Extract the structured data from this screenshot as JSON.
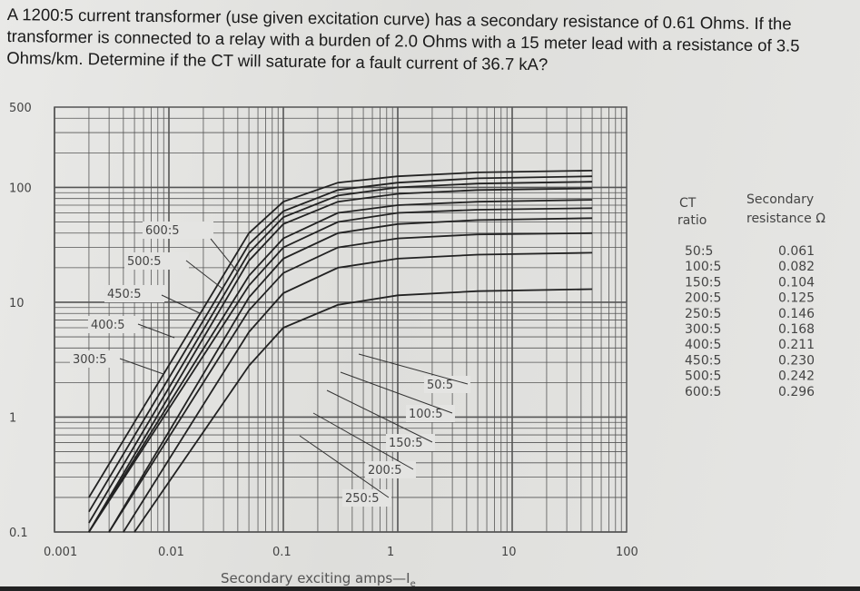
{
  "question": "A 1200:5 current transformer (use given excitation curve) has a secondary resistance of 0.61 Ohms. If the transformer is connected to a relay with a burden of 2.0 Ohms with a 15 meter lead with a resistance of 3.5 Ohms/km. Determine if the CT will saturate for a fault current of 36.7 kA?",
  "chart_data": {
    "type": "line",
    "x_scale": "log",
    "y_scale": "log",
    "xlim": [
      0.001,
      100
    ],
    "ylim": [
      0.1,
      500
    ],
    "xlabel": "Secondary exciting amps—I",
    "xlabel_subscript": "e",
    "x_ticks": [
      "0.001",
      "0.01",
      "0.1",
      "1",
      "10",
      "100"
    ],
    "y_ticks": [
      "500",
      "100",
      "10",
      "1",
      "0.1"
    ],
    "grid": true,
    "series": [
      {
        "name": "600:5",
        "label": "600:5",
        "x": [
          0.002,
          0.05,
          0.1,
          0.3,
          1,
          5,
          50
        ],
        "y": [
          0.2,
          40,
          75,
          110,
          125,
          135,
          140
        ]
      },
      {
        "name": "500:5",
        "label": "500:5",
        "x": [
          0.002,
          0.05,
          0.1,
          0.3,
          1,
          5,
          50
        ],
        "y": [
          0.15,
          32,
          62,
          95,
          110,
          120,
          125
        ]
      },
      {
        "name": "450:5",
        "label": "450:5",
        "x": [
          0.002,
          0.05,
          0.1,
          0.3,
          1,
          5,
          50
        ],
        "y": [
          0.12,
          27,
          55,
          85,
          100,
          108,
          112
        ]
      },
      {
        "name": "400:5",
        "label": "400:5",
        "x": [
          0.002,
          0.05,
          0.1,
          0.3,
          1,
          5,
          50
        ],
        "y": [
          0.1,
          23,
          48,
          75,
          88,
          95,
          98
        ]
      },
      {
        "name": "300:5",
        "label": "300:5",
        "x": [
          0.002,
          0.05,
          0.1,
          0.3,
          1,
          5,
          50
        ],
        "y": [
          0.08,
          17,
          36,
          60,
          70,
          75,
          78
        ]
      },
      {
        "name": "250:5",
        "label": "250:5",
        "x": [
          0.002,
          0.05,
          0.1,
          0.3,
          1,
          5,
          50
        ],
        "y": [
          0.06,
          14,
          30,
          50,
          60,
          64,
          66
        ]
      },
      {
        "name": "200:5",
        "label": "200:5",
        "x": [
          0.003,
          0.05,
          0.1,
          0.3,
          1,
          5,
          50
        ],
        "y": [
          0.1,
          11,
          24,
          40,
          48,
          52,
          54
        ]
      },
      {
        "name": "150:5",
        "label": "150:5",
        "x": [
          0.003,
          0.05,
          0.1,
          0.3,
          1,
          5,
          50
        ],
        "y": [
          0.08,
          8.5,
          18,
          30,
          36,
          39,
          40
        ]
      },
      {
        "name": "100:5",
        "label": "100:5",
        "x": [
          0.004,
          0.05,
          0.1,
          0.3,
          1,
          5,
          50
        ],
        "y": [
          0.1,
          5.5,
          12,
          20,
          24,
          26,
          27
        ]
      },
      {
        "name": "50:5",
        "label": "50:5",
        "x": [
          0.005,
          0.05,
          0.1,
          0.3,
          1,
          5,
          50
        ],
        "y": [
          0.1,
          2.8,
          6,
          9.5,
          11.5,
          12.5,
          13
        ]
      }
    ]
  },
  "ct_table": {
    "header_ratio": "CT",
    "header_ratio2": "ratio",
    "header_res": "Secondary",
    "header_res2": "resistance Ω",
    "rows": [
      {
        "ratio": "50:5",
        "resistance": "0.061"
      },
      {
        "ratio": "100:5",
        "resistance": "0.082"
      },
      {
        "ratio": "150:5",
        "resistance": "0.104"
      },
      {
        "ratio": "200:5",
        "resistance": "0.125"
      },
      {
        "ratio": "250:5",
        "resistance": "0.146"
      },
      {
        "ratio": "300:5",
        "resistance": "0.168"
      },
      {
        "ratio": "400:5",
        "resistance": "0.211"
      },
      {
        "ratio": "450:5",
        "resistance": "0.230"
      },
      {
        "ratio": "500:5",
        "resistance": "0.242"
      },
      {
        "ratio": "600:5",
        "resistance": "0.296"
      }
    ]
  }
}
